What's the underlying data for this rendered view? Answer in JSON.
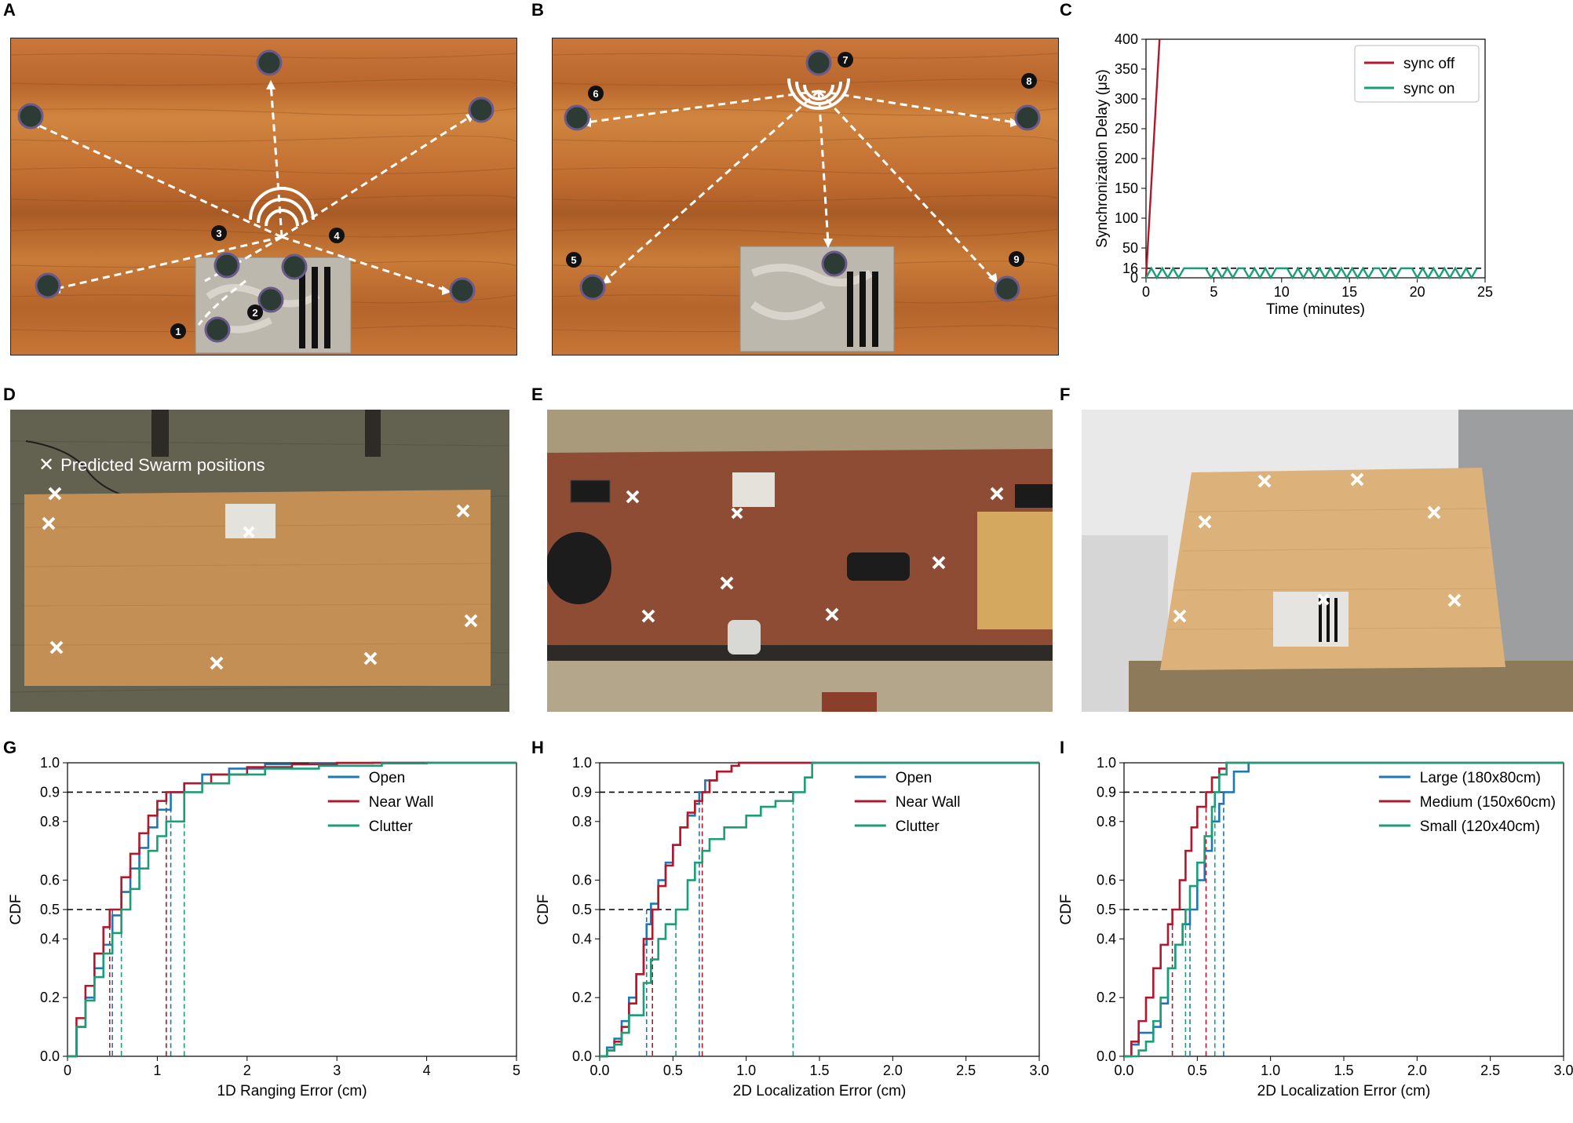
{
  "panel_labels": {
    "A": "A",
    "B": "B",
    "C": "C",
    "D": "D",
    "E": "E",
    "F": "F",
    "G": "G",
    "H": "H",
    "I": "I"
  },
  "panel_a": {
    "robot_numbers": [
      "1",
      "2",
      "3",
      "4"
    ]
  },
  "panel_b": {
    "robot_numbers": [
      "5",
      "6",
      "7",
      "8",
      "9"
    ]
  },
  "panel_d": {
    "legend_symbol": "✕",
    "legend_text": "Predicted Swarm positions"
  },
  "chart_data": [
    {
      "id": "C",
      "type": "line",
      "xlabel": "Time (minutes)",
      "ylabel": "Synchronization Delay (μs)",
      "xlim": [
        0,
        25
      ],
      "ylim": [
        0,
        400
      ],
      "xticks": [
        "0",
        "5",
        "10",
        "15",
        "20",
        "25"
      ],
      "yticks": [
        "0",
        "16",
        "50",
        "100",
        "150",
        "200",
        "250",
        "300",
        "350",
        "400"
      ],
      "reference_line_y": 16,
      "grid": false,
      "legend_position": "top-right",
      "colors": {
        "sync off": "#b2182b",
        "sync on": "#1b9e77"
      },
      "series": [
        {
          "name": "sync off",
          "x": [
            0.0,
            1.0
          ],
          "y": [
            0,
            400
          ]
        },
        {
          "name": "sync on",
          "x": [
            0.0,
            0.4,
            0.8,
            1.2,
            1.6,
            2.0,
            2.4,
            2.8,
            3.2,
            3.6,
            4.0,
            4.4,
            4.8,
            5.2,
            5.6,
            6.0,
            6.4,
            6.8,
            7.2,
            7.6,
            8.0,
            8.4,
            8.8,
            9.2,
            9.6,
            10.0,
            10.4,
            10.8,
            11.2,
            11.6,
            12.0,
            12.4,
            12.8,
            13.2,
            13.6,
            14.0,
            14.4,
            14.8,
            15.2,
            15.6,
            16.0,
            16.4,
            16.8,
            17.2,
            17.6,
            18.0,
            18.4,
            18.8,
            19.2,
            19.6,
            20.0,
            20.4,
            20.8,
            21.2,
            21.6,
            22.0,
            22.4,
            22.8,
            23.2,
            23.6,
            24.0,
            24.4
          ],
          "y": [
            0,
            16,
            0,
            16,
            0,
            16,
            0,
            16,
            16,
            16,
            16,
            16,
            0,
            16,
            0,
            16,
            0,
            16,
            16,
            0,
            16,
            0,
            16,
            0,
            16,
            16,
            16,
            0,
            16,
            0,
            16,
            0,
            16,
            0,
            16,
            0,
            16,
            0,
            16,
            0,
            16,
            0,
            16,
            16,
            0,
            16,
            0,
            16,
            16,
            16,
            0,
            16,
            0,
            16,
            0,
            16,
            0,
            16,
            0,
            16,
            0,
            16
          ]
        }
      ]
    },
    {
      "id": "G",
      "type": "line",
      "xlabel": "1D Ranging Error (cm)",
      "ylabel": "CDF",
      "xlim": [
        0,
        5
      ],
      "ylim": [
        0,
        1.0
      ],
      "xticks": [
        "0",
        "1",
        "2",
        "3",
        "4",
        "5"
      ],
      "yticks": [
        "0.0",
        "0.2",
        "0.4",
        "0.5",
        "0.6",
        "0.8",
        "0.9",
        "1.0"
      ],
      "reference_lines_y": [
        0.5,
        0.9
      ],
      "grid": false,
      "legend_position": "top-right",
      "colors": {
        "Open": "#1f77b4",
        "Near Wall": "#b2182b",
        "Clutter": "#1b9e77"
      },
      "series": [
        {
          "name": "Open",
          "x": [
            0,
            0.1,
            0.2,
            0.3,
            0.4,
            0.5,
            0.6,
            0.7,
            0.8,
            0.9,
            1.0,
            1.15,
            1.3,
            1.5,
            1.8,
            2.2,
            2.7,
            3.4
          ],
          "y": [
            0,
            0.1,
            0.2,
            0.3,
            0.38,
            0.48,
            0.56,
            0.64,
            0.71,
            0.78,
            0.84,
            0.9,
            0.93,
            0.96,
            0.98,
            0.995,
            0.999,
            1.0
          ],
          "median": 0.5,
          "p90": 1.15
        },
        {
          "name": "Near Wall",
          "x": [
            0,
            0.1,
            0.2,
            0.3,
            0.4,
            0.47,
            0.6,
            0.7,
            0.8,
            0.9,
            1.0,
            1.1,
            1.3,
            1.6,
            2.0,
            2.5,
            3.0
          ],
          "y": [
            0,
            0.13,
            0.24,
            0.35,
            0.44,
            0.5,
            0.61,
            0.69,
            0.76,
            0.82,
            0.87,
            0.9,
            0.93,
            0.96,
            0.985,
            0.995,
            1.0
          ],
          "median": 0.47,
          "p90": 1.1
        },
        {
          "name": "Clutter",
          "x": [
            0,
            0.1,
            0.2,
            0.3,
            0.4,
            0.5,
            0.6,
            0.7,
            0.8,
            0.9,
            1.0,
            1.1,
            1.3,
            1.5,
            1.8,
            2.2,
            2.8,
            3.5,
            4.0
          ],
          "y": [
            0,
            0.1,
            0.19,
            0.27,
            0.35,
            0.42,
            0.5,
            0.57,
            0.64,
            0.7,
            0.75,
            0.8,
            0.9,
            0.93,
            0.96,
            0.98,
            0.99,
            0.998,
            1.0
          ],
          "median": 0.6,
          "p90": 1.3
        }
      ]
    },
    {
      "id": "H",
      "type": "line",
      "xlabel": "2D Localization Error (cm)",
      "ylabel": "CDF",
      "xlim": [
        0,
        3.0
      ],
      "ylim": [
        0,
        1.0
      ],
      "xticks": [
        "0.0",
        "0.5",
        "1.0",
        "1.5",
        "2.0",
        "2.5",
        "3.0"
      ],
      "yticks": [
        "0.0",
        "0.2",
        "0.4",
        "0.5",
        "0.6",
        "0.8",
        "0.9",
        "1.0"
      ],
      "reference_lines_y": [
        0.5,
        0.9
      ],
      "grid": false,
      "legend_position": "top-right",
      "colors": {
        "Open": "#1f77b4",
        "Near Wall": "#b2182b",
        "Clutter": "#1b9e77"
      },
      "series": [
        {
          "name": "Open",
          "x": [
            0,
            0.05,
            0.1,
            0.15,
            0.2,
            0.25,
            0.3,
            0.32,
            0.35,
            0.4,
            0.45,
            0.5,
            0.55,
            0.6,
            0.65,
            0.68,
            0.72,
            0.8,
            0.9,
            0.95
          ],
          "y": [
            0,
            0.03,
            0.06,
            0.12,
            0.2,
            0.28,
            0.38,
            0.45,
            0.52,
            0.6,
            0.66,
            0.72,
            0.78,
            0.82,
            0.86,
            0.9,
            0.94,
            0.97,
            0.99,
            1.0
          ],
          "median": 0.32,
          "p90": 0.68
        },
        {
          "name": "Near Wall",
          "x": [
            0,
            0.05,
            0.1,
            0.15,
            0.2,
            0.25,
            0.3,
            0.36,
            0.4,
            0.45,
            0.5,
            0.55,
            0.6,
            0.65,
            0.7,
            0.75,
            0.8,
            0.9,
            0.95
          ],
          "y": [
            0,
            0.02,
            0.05,
            0.1,
            0.18,
            0.28,
            0.4,
            0.5,
            0.58,
            0.65,
            0.72,
            0.78,
            0.83,
            0.87,
            0.9,
            0.94,
            0.97,
            0.99,
            1.0
          ],
          "median": 0.36,
          "p90": 0.7
        },
        {
          "name": "Clutter",
          "x": [
            0,
            0.05,
            0.1,
            0.15,
            0.2,
            0.3,
            0.35,
            0.4,
            0.45,
            0.52,
            0.6,
            0.65,
            0.7,
            0.75,
            0.85,
            1.0,
            1.1,
            1.2,
            1.32,
            1.4,
            1.45
          ],
          "y": [
            0,
            0.02,
            0.04,
            0.08,
            0.14,
            0.25,
            0.33,
            0.4,
            0.45,
            0.5,
            0.6,
            0.66,
            0.7,
            0.74,
            0.78,
            0.82,
            0.85,
            0.87,
            0.9,
            0.95,
            1.0
          ],
          "median": 0.52,
          "p90": 1.32
        }
      ]
    },
    {
      "id": "I",
      "type": "line",
      "xlabel": "2D Localization Error (cm)",
      "ylabel": "CDF",
      "xlim": [
        0,
        3.0
      ],
      "ylim": [
        0,
        1.0
      ],
      "xticks": [
        "0.0",
        "0.5",
        "1.0",
        "1.5",
        "2.0",
        "2.5",
        "3.0"
      ],
      "yticks": [
        "0.0",
        "0.2",
        "0.4",
        "0.5",
        "0.6",
        "0.8",
        "0.9",
        "1.0"
      ],
      "reference_lines_y": [
        0.5,
        0.9
      ],
      "grid": false,
      "legend_position": "top-right",
      "colors": {
        "Large (180x80cm)": "#1f77b4",
        "Medium (150x60cm)": "#b2182b",
        "Small (120x40cm)": "#1b9e77"
      },
      "series": [
        {
          "name": "Large (180x80cm)",
          "x": [
            0,
            0.05,
            0.1,
            0.2,
            0.25,
            0.3,
            0.35,
            0.4,
            0.45,
            0.5,
            0.55,
            0.6,
            0.65,
            0.68,
            0.75,
            0.85
          ],
          "y": [
            0,
            0.04,
            0.08,
            0.1,
            0.18,
            0.3,
            0.38,
            0.45,
            0.5,
            0.6,
            0.7,
            0.8,
            0.86,
            0.9,
            0.97,
            1.0
          ],
          "median": 0.45,
          "p90": 0.68
        },
        {
          "name": "Medium (150x60cm)",
          "x": [
            0,
            0.05,
            0.1,
            0.15,
            0.2,
            0.25,
            0.3,
            0.33,
            0.38,
            0.42,
            0.46,
            0.5,
            0.56,
            0.6,
            0.65,
            0.7
          ],
          "y": [
            0,
            0.05,
            0.12,
            0.2,
            0.3,
            0.38,
            0.45,
            0.5,
            0.6,
            0.7,
            0.78,
            0.85,
            0.9,
            0.95,
            0.98,
            1.0
          ],
          "median": 0.33,
          "p90": 0.56
        },
        {
          "name": "Small (120x40cm)",
          "x": [
            0,
            0.1,
            0.15,
            0.2,
            0.25,
            0.3,
            0.35,
            0.4,
            0.42,
            0.45,
            0.5,
            0.55,
            0.6,
            0.62,
            0.65,
            0.7
          ],
          "y": [
            0,
            0.02,
            0.05,
            0.12,
            0.2,
            0.3,
            0.38,
            0.45,
            0.5,
            0.58,
            0.66,
            0.75,
            0.85,
            0.9,
            0.96,
            1.0
          ],
          "median": 0.42,
          "p90": 0.62
        }
      ]
    }
  ]
}
